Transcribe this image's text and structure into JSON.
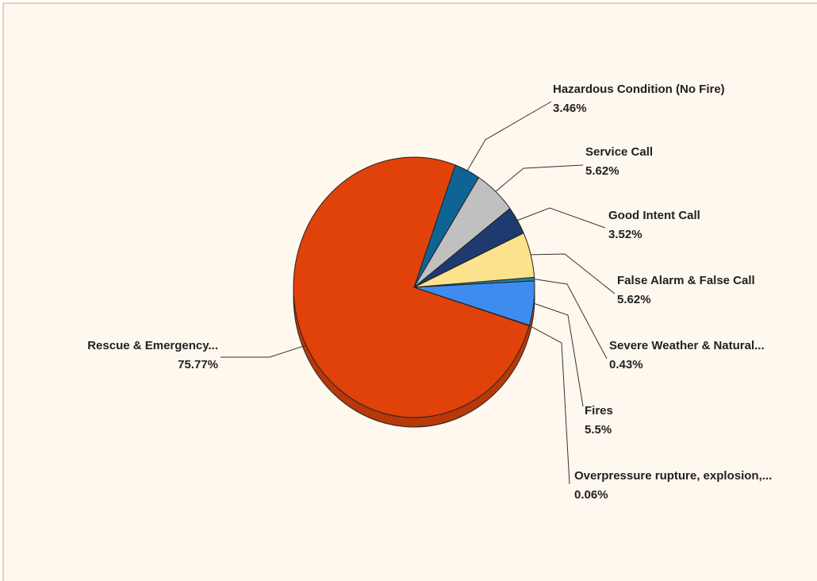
{
  "chart_data": {
    "type": "pie",
    "categories": [
      "Hazardous Condition (No Fire)",
      "Service Call",
      "Good Intent Call",
      "False Alarm & False Call",
      "Severe Weather & Natural...",
      "Fires",
      "Overpressure  rupture, explosion,...",
      "Rescue & Emergency..."
    ],
    "values": [
      3.46,
      5.62,
      3.52,
      5.62,
      0.43,
      5.5,
      0.06,
      75.77
    ],
    "value_labels": [
      "3.46%",
      "5.62%",
      "3.52%",
      "5.62%",
      "0.43%",
      "5.5%",
      "0.06%",
      "75.77%"
    ],
    "colors": [
      "#0e6494",
      "#c0c0c0",
      "#1e3a6e",
      "#fce28c",
      "#2a7f9e",
      "#3f8cf0",
      "#d9d9d9",
      "#e0420a"
    ]
  }
}
